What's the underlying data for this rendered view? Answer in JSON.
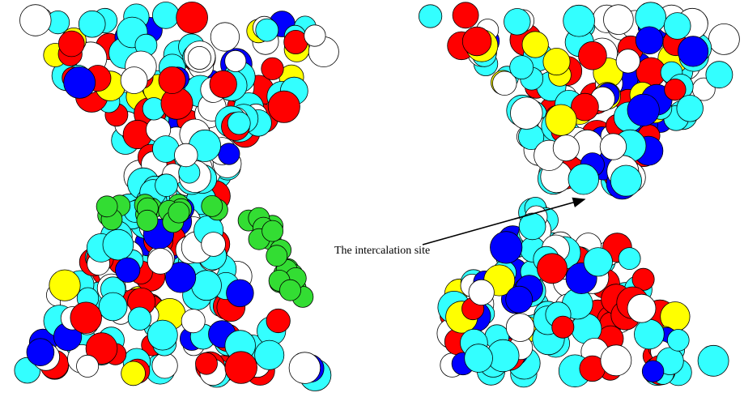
{
  "annotation": "The intercalation site"
}
